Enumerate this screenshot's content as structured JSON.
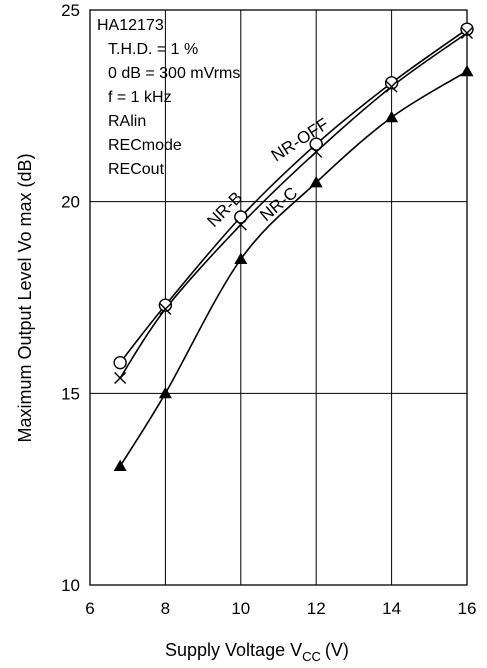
{
  "chart_data": {
    "type": "line",
    "title": "",
    "xlabel": "Supply Voltage V",
    "xlabel_sub": "CC",
    "xlabel_unit": "(V)",
    "ylabel": "Maximum Output Level Vo max (dB)",
    "xlim": [
      6,
      16
    ],
    "ylim": [
      10,
      25
    ],
    "xticks": [
      "6",
      "8",
      "10",
      "12",
      "14",
      "16"
    ],
    "yticks": [
      "10",
      "15",
      "20",
      "25"
    ],
    "grid": true,
    "info_box": [
      "HA12173",
      "T.H.D. = 1 %",
      "0 dB = 300 mVrms",
      "f = 1 kHz",
      "RAlin",
      "RECmode",
      "RECout"
    ],
    "series": [
      {
        "name": "NR-OFF",
        "marker": "circle",
        "x": [
          6.8,
          8,
          10,
          12,
          14,
          16
        ],
        "y": [
          15.8,
          17.3,
          19.6,
          21.5,
          23.1,
          24.5
        ]
      },
      {
        "name": "NR-B",
        "marker": "cross",
        "x": [
          6.8,
          8,
          10,
          12,
          14,
          16
        ],
        "y": [
          15.4,
          17.2,
          19.4,
          21.3,
          23.0,
          24.4
        ]
      },
      {
        "name": "NR-C",
        "marker": "triangle",
        "x": [
          6.8,
          8,
          10,
          12,
          14,
          16
        ],
        "y": [
          13.1,
          15.0,
          18.5,
          20.5,
          22.2,
          23.4
        ]
      }
    ]
  }
}
